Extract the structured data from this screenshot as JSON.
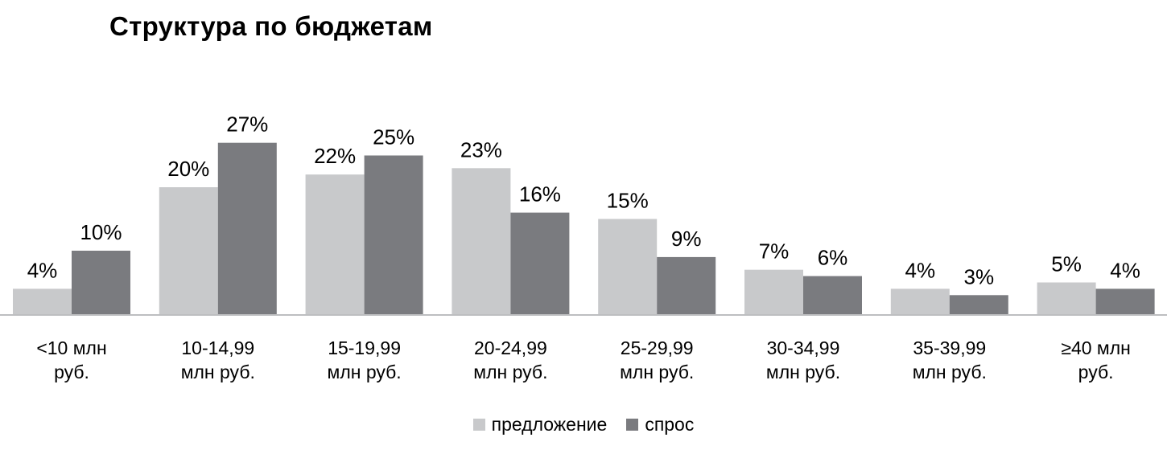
{
  "chart_data": {
    "type": "bar",
    "title": "Структура по бюджетам",
    "categories": [
      "<10 млн\nруб.",
      "10-14,99\nмлн руб.",
      "15-19,99\nмлн руб.",
      "20-24,99\nмлн руб.",
      "25-29,99\nмлн руб.",
      "30-34,99\nмлн руб.",
      "35-39,99\nмлн руб.",
      "≥40 млн\nруб."
    ],
    "series": [
      {
        "name": "предложение",
        "color": "#c8c9cb",
        "values": [
          4,
          20,
          22,
          23,
          15,
          7,
          4,
          5
        ],
        "labels": [
          "4%",
          "20%",
          "22%",
          "23%",
          "15%",
          "7%",
          "4%",
          "5%"
        ]
      },
      {
        "name": "спрос",
        "color": "#7a7b7f",
        "values": [
          10,
          27,
          25,
          16,
          9,
          6,
          3,
          4
        ],
        "labels": [
          "10%",
          "27%",
          "25%",
          "16%",
          "9%",
          "6%",
          "3%",
          "4%"
        ]
      }
    ],
    "ylim": [
      0,
      27
    ],
    "grid": false,
    "legend": "bottom-center",
    "axis_color": "#bdbec0"
  }
}
